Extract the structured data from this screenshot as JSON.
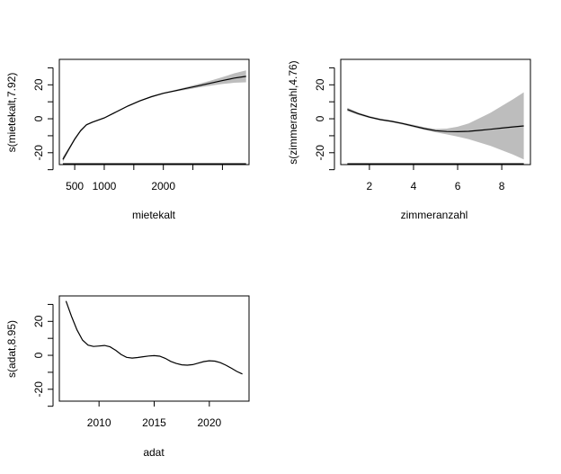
{
  "chart_data": [
    {
      "type": "line",
      "xlabel": "mietekalt",
      "ylabel": "s(mietekalt,7.92)",
      "xlim": [
        240,
        3450
      ],
      "ylim": [
        -27,
        35
      ],
      "x_ticks": [
        500,
        1000,
        1500,
        2000,
        2500,
        3000
      ],
      "x_tick_labels": [
        "500",
        "1000",
        "",
        "2000",
        "",
        ""
      ],
      "y_ticks": [
        -30,
        -20,
        -10,
        0,
        10,
        20,
        30
      ],
      "y_tick_labels": [
        "",
        "-20",
        "",
        "0",
        "",
        "20",
        ""
      ],
      "x": [
        300,
        400,
        500,
        600,
        700,
        800,
        1000,
        1200,
        1400,
        1600,
        1800,
        2000,
        2200,
        2400,
        2600,
        2800,
        3000,
        3200,
        3400
      ],
      "fit": [
        -24,
        -18,
        -12,
        -7,
        -3.5,
        -2,
        0.5,
        4,
        7.5,
        10.5,
        13,
        15,
        16.5,
        18,
        19.5,
        21,
        22.5,
        24,
        25
      ],
      "lower": [
        -25.5,
        -19,
        -12.8,
        -7.6,
        -4,
        -2.4,
        0.1,
        3.6,
        7.1,
        10.1,
        12.6,
        14.6,
        16,
        17.2,
        18.4,
        19.5,
        20.5,
        21.2,
        21.5
      ],
      "upper": [
        -22.5,
        -17,
        -11.2,
        -6.4,
        -3,
        -1.6,
        0.9,
        4.4,
        7.9,
        10.9,
        13.4,
        15.4,
        17,
        18.8,
        20.6,
        22.5,
        24.5,
        26.8,
        28.5
      ]
    },
    {
      "type": "line",
      "xlabel": "zimmeranzahl",
      "ylabel": "s(zimmeranzahl,4.76)",
      "xlim": [
        0.7,
        9.3
      ],
      "ylim": [
        -27,
        35
      ],
      "x_ticks": [
        2,
        4,
        6,
        8
      ],
      "x_tick_labels": [
        "2",
        "4",
        "6",
        "8"
      ],
      "y_ticks": [
        -30,
        -20,
        -10,
        0,
        10,
        20,
        30
      ],
      "y_tick_labels": [
        "",
        "-20",
        "",
        "0",
        "",
        "20",
        ""
      ],
      "x": [
        1,
        1.5,
        2,
        2.5,
        3,
        3.5,
        4,
        4.5,
        5,
        5.5,
        6,
        6.5,
        7,
        7.5,
        8,
        8.5,
        9
      ],
      "fit": [
        5.5,
        3,
        1,
        -0.5,
        -1.5,
        -2.8,
        -4.3,
        -5.8,
        -7,
        -7.5,
        -7.6,
        -7.4,
        -6.8,
        -6.2,
        -5.5,
        -4.8,
        -4.2
      ],
      "lower": [
        4.5,
        2.3,
        0.4,
        -1,
        -2,
        -3.4,
        -5,
        -6.6,
        -8,
        -9.2,
        -10.5,
        -12,
        -14,
        -16,
        -18.5,
        -21,
        -24
      ],
      "upper": [
        6.5,
        3.7,
        1.6,
        0,
        -1,
        -2.2,
        -3.6,
        -5,
        -6,
        -5.8,
        -4.7,
        -2.8,
        0.4,
        3.6,
        7.5,
        11.4,
        15.6
      ]
    },
    {
      "type": "line",
      "xlabel": "adat",
      "ylabel": "s(adat,8.95)",
      "xlim": [
        2006.4,
        2023.6
      ],
      "ylim": [
        -27,
        35
      ],
      "x_ticks": [
        2010,
        2015,
        2020
      ],
      "x_tick_labels": [
        "2010",
        "2015",
        "2020"
      ],
      "y_ticks": [
        -30,
        -20,
        -10,
        0,
        10,
        20,
        30
      ],
      "y_tick_labels": [
        "",
        "-20",
        "",
        "0",
        "",
        "20",
        ""
      ],
      "x": [
        2007,
        2007.5,
        2008,
        2008.5,
        2009,
        2009.5,
        2010,
        2010.5,
        2011,
        2011.5,
        2012,
        2012.5,
        2013,
        2013.5,
        2014,
        2014.5,
        2015,
        2015.5,
        2016,
        2016.5,
        2017,
        2017.5,
        2018,
        2018.5,
        2019,
        2019.5,
        2020,
        2020.5,
        2021,
        2021.5,
        2022,
        2022.5,
        2023
      ],
      "fit": [
        32,
        23,
        15,
        9,
        6,
        5.2,
        5.5,
        5.8,
        5,
        3,
        0.5,
        -1.2,
        -1.6,
        -1.3,
        -0.8,
        -0.4,
        -0.2,
        -0.5,
        -1.8,
        -3.6,
        -4.8,
        -5.6,
        -5.8,
        -5.5,
        -4.6,
        -3.7,
        -3.2,
        -3.4,
        -4.3,
        -5.8,
        -7.6,
        -9.5,
        -11
      ]
    }
  ]
}
